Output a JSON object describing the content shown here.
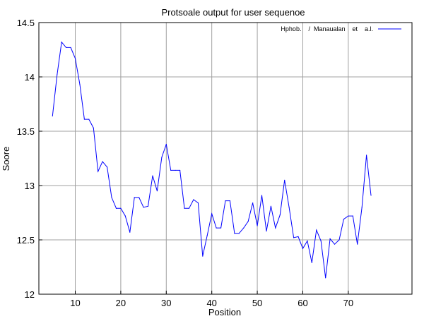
{
  "chart_data": {
    "type": "line",
    "title": "Protsoale output for user sequenoe",
    "xlabel": "Position",
    "ylabel": "Soore",
    "xlim": [
      2,
      84
    ],
    "ylim": [
      12,
      14.5
    ],
    "x_ticks": [
      10,
      20,
      30,
      40,
      50,
      60,
      70
    ],
    "y_ticks": [
      12,
      12.5,
      13,
      13.5,
      14,
      14.5
    ],
    "x_tick_labels": [
      "10",
      "20",
      "30",
      "40",
      "50",
      "60",
      "70"
    ],
    "y_tick_labels": [
      "12",
      "12.5",
      "13",
      "13.5",
      "14",
      "14.5"
    ],
    "grid": true,
    "legend_position": "top-right",
    "series": [
      {
        "name": "Hphob.    /  Manaualan    et    a.l.",
        "color": "#0000ff",
        "x": [
          5,
          6,
          7,
          8,
          9,
          10,
          11,
          12,
          13,
          14,
          15,
          16,
          17,
          18,
          19,
          20,
          21,
          22,
          23,
          24,
          25,
          26,
          27,
          28,
          29,
          30,
          31,
          32,
          33,
          34,
          35,
          36,
          37,
          38,
          39,
          40,
          41,
          42,
          43,
          44,
          45,
          46,
          47,
          48,
          49,
          50,
          51,
          52,
          53,
          54,
          55,
          56,
          57,
          58,
          59,
          60,
          61,
          62,
          63,
          64,
          65,
          66,
          67,
          68,
          69,
          70,
          71,
          72,
          73,
          74,
          75
        ],
        "values": [
          13.64,
          14.02,
          14.32,
          14.27,
          14.27,
          14.17,
          13.93,
          13.61,
          13.61,
          13.53,
          13.13,
          13.22,
          13.17,
          12.89,
          12.79,
          12.79,
          12.72,
          12.57,
          12.89,
          12.89,
          12.8,
          12.81,
          13.09,
          12.95,
          13.26,
          13.38,
          13.14,
          13.14,
          13.14,
          12.79,
          12.79,
          12.87,
          12.84,
          12.35,
          12.54,
          12.74,
          12.61,
          12.61,
          12.86,
          12.86,
          12.56,
          12.56,
          12.61,
          12.67,
          12.84,
          12.63,
          12.91,
          12.58,
          12.81,
          12.61,
          12.73,
          13.05,
          12.8,
          12.52,
          12.53,
          12.42,
          12.49,
          12.29,
          12.59,
          12.49,
          12.15,
          12.51,
          12.46,
          12.5,
          12.69,
          12.72,
          12.72,
          12.46,
          12.8,
          13.28,
          12.91
        ]
      }
    ]
  }
}
